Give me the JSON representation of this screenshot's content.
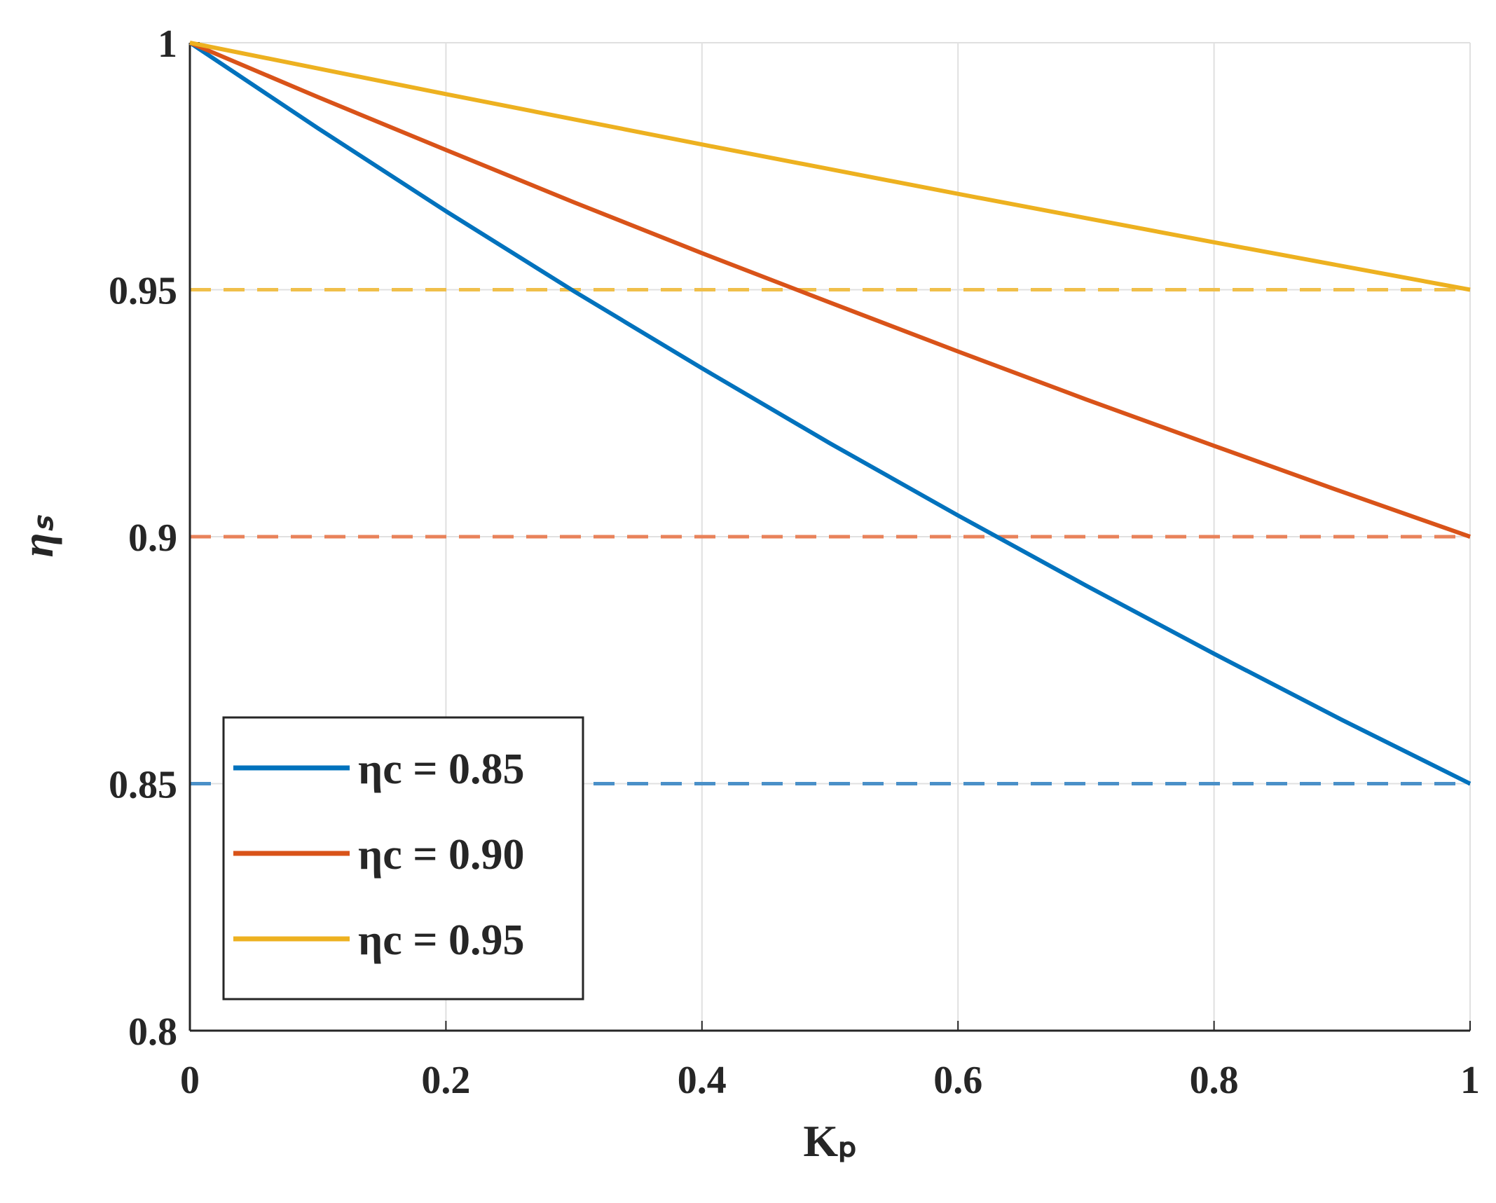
{
  "chart_data": {
    "type": "line",
    "xlabel": "Kₚ",
    "ylabel": "ηₛ",
    "x": [
      0,
      0.1,
      0.2,
      0.3,
      0.4,
      0.5,
      0.6,
      0.7,
      0.8,
      0.9,
      1
    ],
    "series": [
      {
        "name": "ηc = 0.85",
        "color": "#0072bd",
        "values": [
          1,
          0.9827,
          0.9659,
          0.9497,
          0.9341,
          0.9189,
          0.9043,
          0.8901,
          0.8763,
          0.8629,
          0.85
        ]
      },
      {
        "name": "ηc = 0.90",
        "color": "#d95319",
        "values": [
          1,
          0.989,
          0.9783,
          0.9677,
          0.9574,
          0.9474,
          0.9375,
          0.9278,
          0.9184,
          0.9091,
          0.9
        ]
      },
      {
        "name": "ηc = 0.95",
        "color": "#edb120",
        "values": [
          1,
          0.9948,
          0.9896,
          0.9845,
          0.9794,
          0.9744,
          0.9694,
          0.9645,
          0.9596,
          0.9548,
          0.95
        ]
      }
    ],
    "hlines": [
      {
        "value": 0.85,
        "color": "#4a90c8",
        "dashed": true
      },
      {
        "value": 0.9,
        "color": "#e8825a",
        "dashed": true
      },
      {
        "value": 0.95,
        "color": "#f0bf4a",
        "dashed": true
      }
    ],
    "xlim": [
      0,
      1
    ],
    "ylim": [
      0.8,
      1
    ],
    "xticks": [
      0,
      0.2,
      0.4,
      0.6,
      0.8,
      1
    ],
    "yticks": [
      0.8,
      0.85,
      0.9,
      0.95,
      1
    ],
    "grid": true,
    "legend": "lower-left"
  }
}
